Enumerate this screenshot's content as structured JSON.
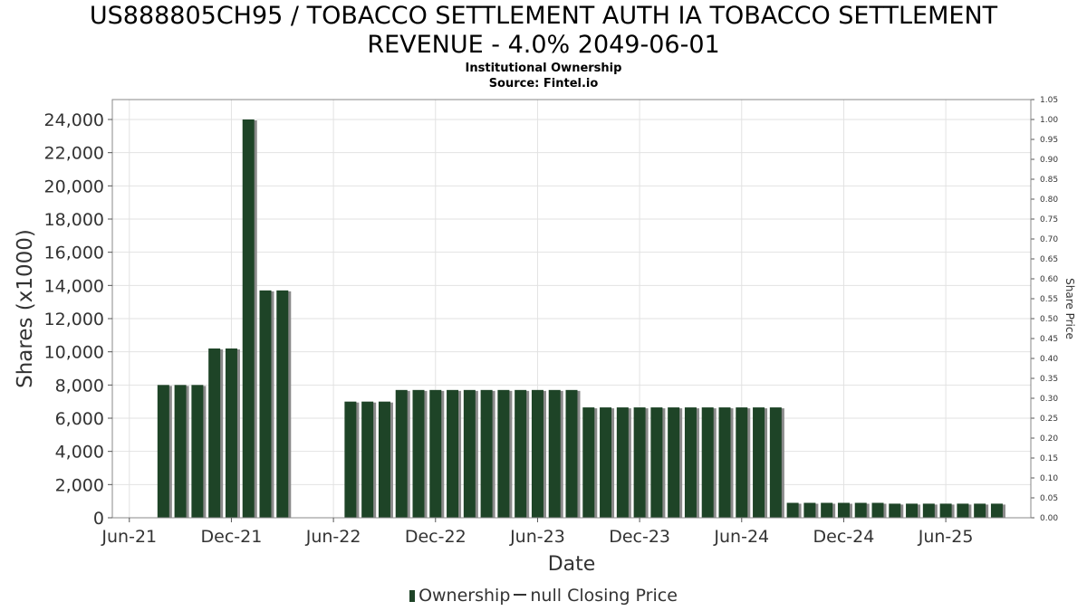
{
  "title_line1": "US888805CH95 / TOBACCO SETTLEMENT AUTH IA TOBACCO SETTLEMENT",
  "title_line2": "REVENUE - 4.0% 2049-06-01",
  "subtitle1": "Institutional Ownership",
  "subtitle2": "Source: Fintel.io",
  "legend": {
    "ownership": "Ownership",
    "price": "null Closing Price"
  },
  "colors": {
    "bar": "#1e4427",
    "shadow": "#8a8a8a",
    "grid": "#e2e2e2",
    "text": "#333333"
  },
  "chart_data": {
    "type": "bar",
    "xlabel": "Date",
    "ylabel": "Shares (x1000)",
    "y2label": "Share Price",
    "ylim": [
      0,
      25200
    ],
    "y2lim": [
      0,
      1.05
    ],
    "grid": true,
    "legend_position": "bottom",
    "yticks": [
      0,
      2000,
      4000,
      6000,
      8000,
      10000,
      12000,
      14000,
      16000,
      18000,
      20000,
      22000,
      24000
    ],
    "ytick_labels": [
      "0",
      "2,000",
      "4,000",
      "6,000",
      "8,000",
      "10,000",
      "12,000",
      "14,000",
      "16,000",
      "18,000",
      "20,000",
      "22,000",
      "24,000"
    ],
    "y2tick_labels": [
      "0.00",
      "0.05",
      "0.10",
      "0.15",
      "0.20",
      "0.25",
      "0.30",
      "0.35",
      "0.40",
      "0.45",
      "0.50",
      "0.55",
      "0.60",
      "0.65",
      "0.70",
      "0.75",
      "0.80",
      "0.85",
      "0.90",
      "0.95",
      "1.00",
      "1.05"
    ],
    "xtick_labels": [
      "Jun-21",
      "Dec-21",
      "Jun-22",
      "Dec-22",
      "Jun-23",
      "Dec-23",
      "Jun-24",
      "Dec-24",
      "Jun-25"
    ],
    "xrange_months": [
      "2021-05",
      "2025-11"
    ],
    "xticks_months": [
      "2021-06",
      "2021-12",
      "2022-06",
      "2022-12",
      "2023-06",
      "2023-12",
      "2024-06",
      "2024-12",
      "2025-06"
    ],
    "series": [
      {
        "name": "Ownership",
        "x": [
          "2021-08",
          "2021-09",
          "2021-10",
          "2021-11",
          "2021-12",
          "2022-01",
          "2022-02",
          "2022-03",
          "2022-07",
          "2022-08",
          "2022-09",
          "2022-10",
          "2022-11",
          "2022-12",
          "2023-01",
          "2023-02",
          "2023-03",
          "2023-04",
          "2023-05",
          "2023-06",
          "2023-07",
          "2023-08",
          "2023-09",
          "2023-10",
          "2023-11",
          "2023-12",
          "2024-01",
          "2024-02",
          "2024-03",
          "2024-04",
          "2024-05",
          "2024-06",
          "2024-07",
          "2024-08",
          "2024-09",
          "2024-10",
          "2024-11",
          "2024-12",
          "2025-01",
          "2025-02",
          "2025-03",
          "2025-04",
          "2025-05",
          "2025-06",
          "2025-07",
          "2025-08",
          "2025-09"
        ],
        "values": [
          8000,
          8000,
          8000,
          10200,
          10200,
          24000,
          13700,
          13700,
          7000,
          7000,
          7000,
          7700,
          7700,
          7700,
          7700,
          7700,
          7700,
          7700,
          7700,
          7700,
          7700,
          7700,
          6650,
          6650,
          6650,
          6650,
          6650,
          6650,
          6650,
          6650,
          6650,
          6650,
          6650,
          6650,
          900,
          900,
          900,
          900,
          900,
          900,
          850,
          850,
          850,
          850,
          850,
          850,
          850
        ]
      }
    ]
  }
}
